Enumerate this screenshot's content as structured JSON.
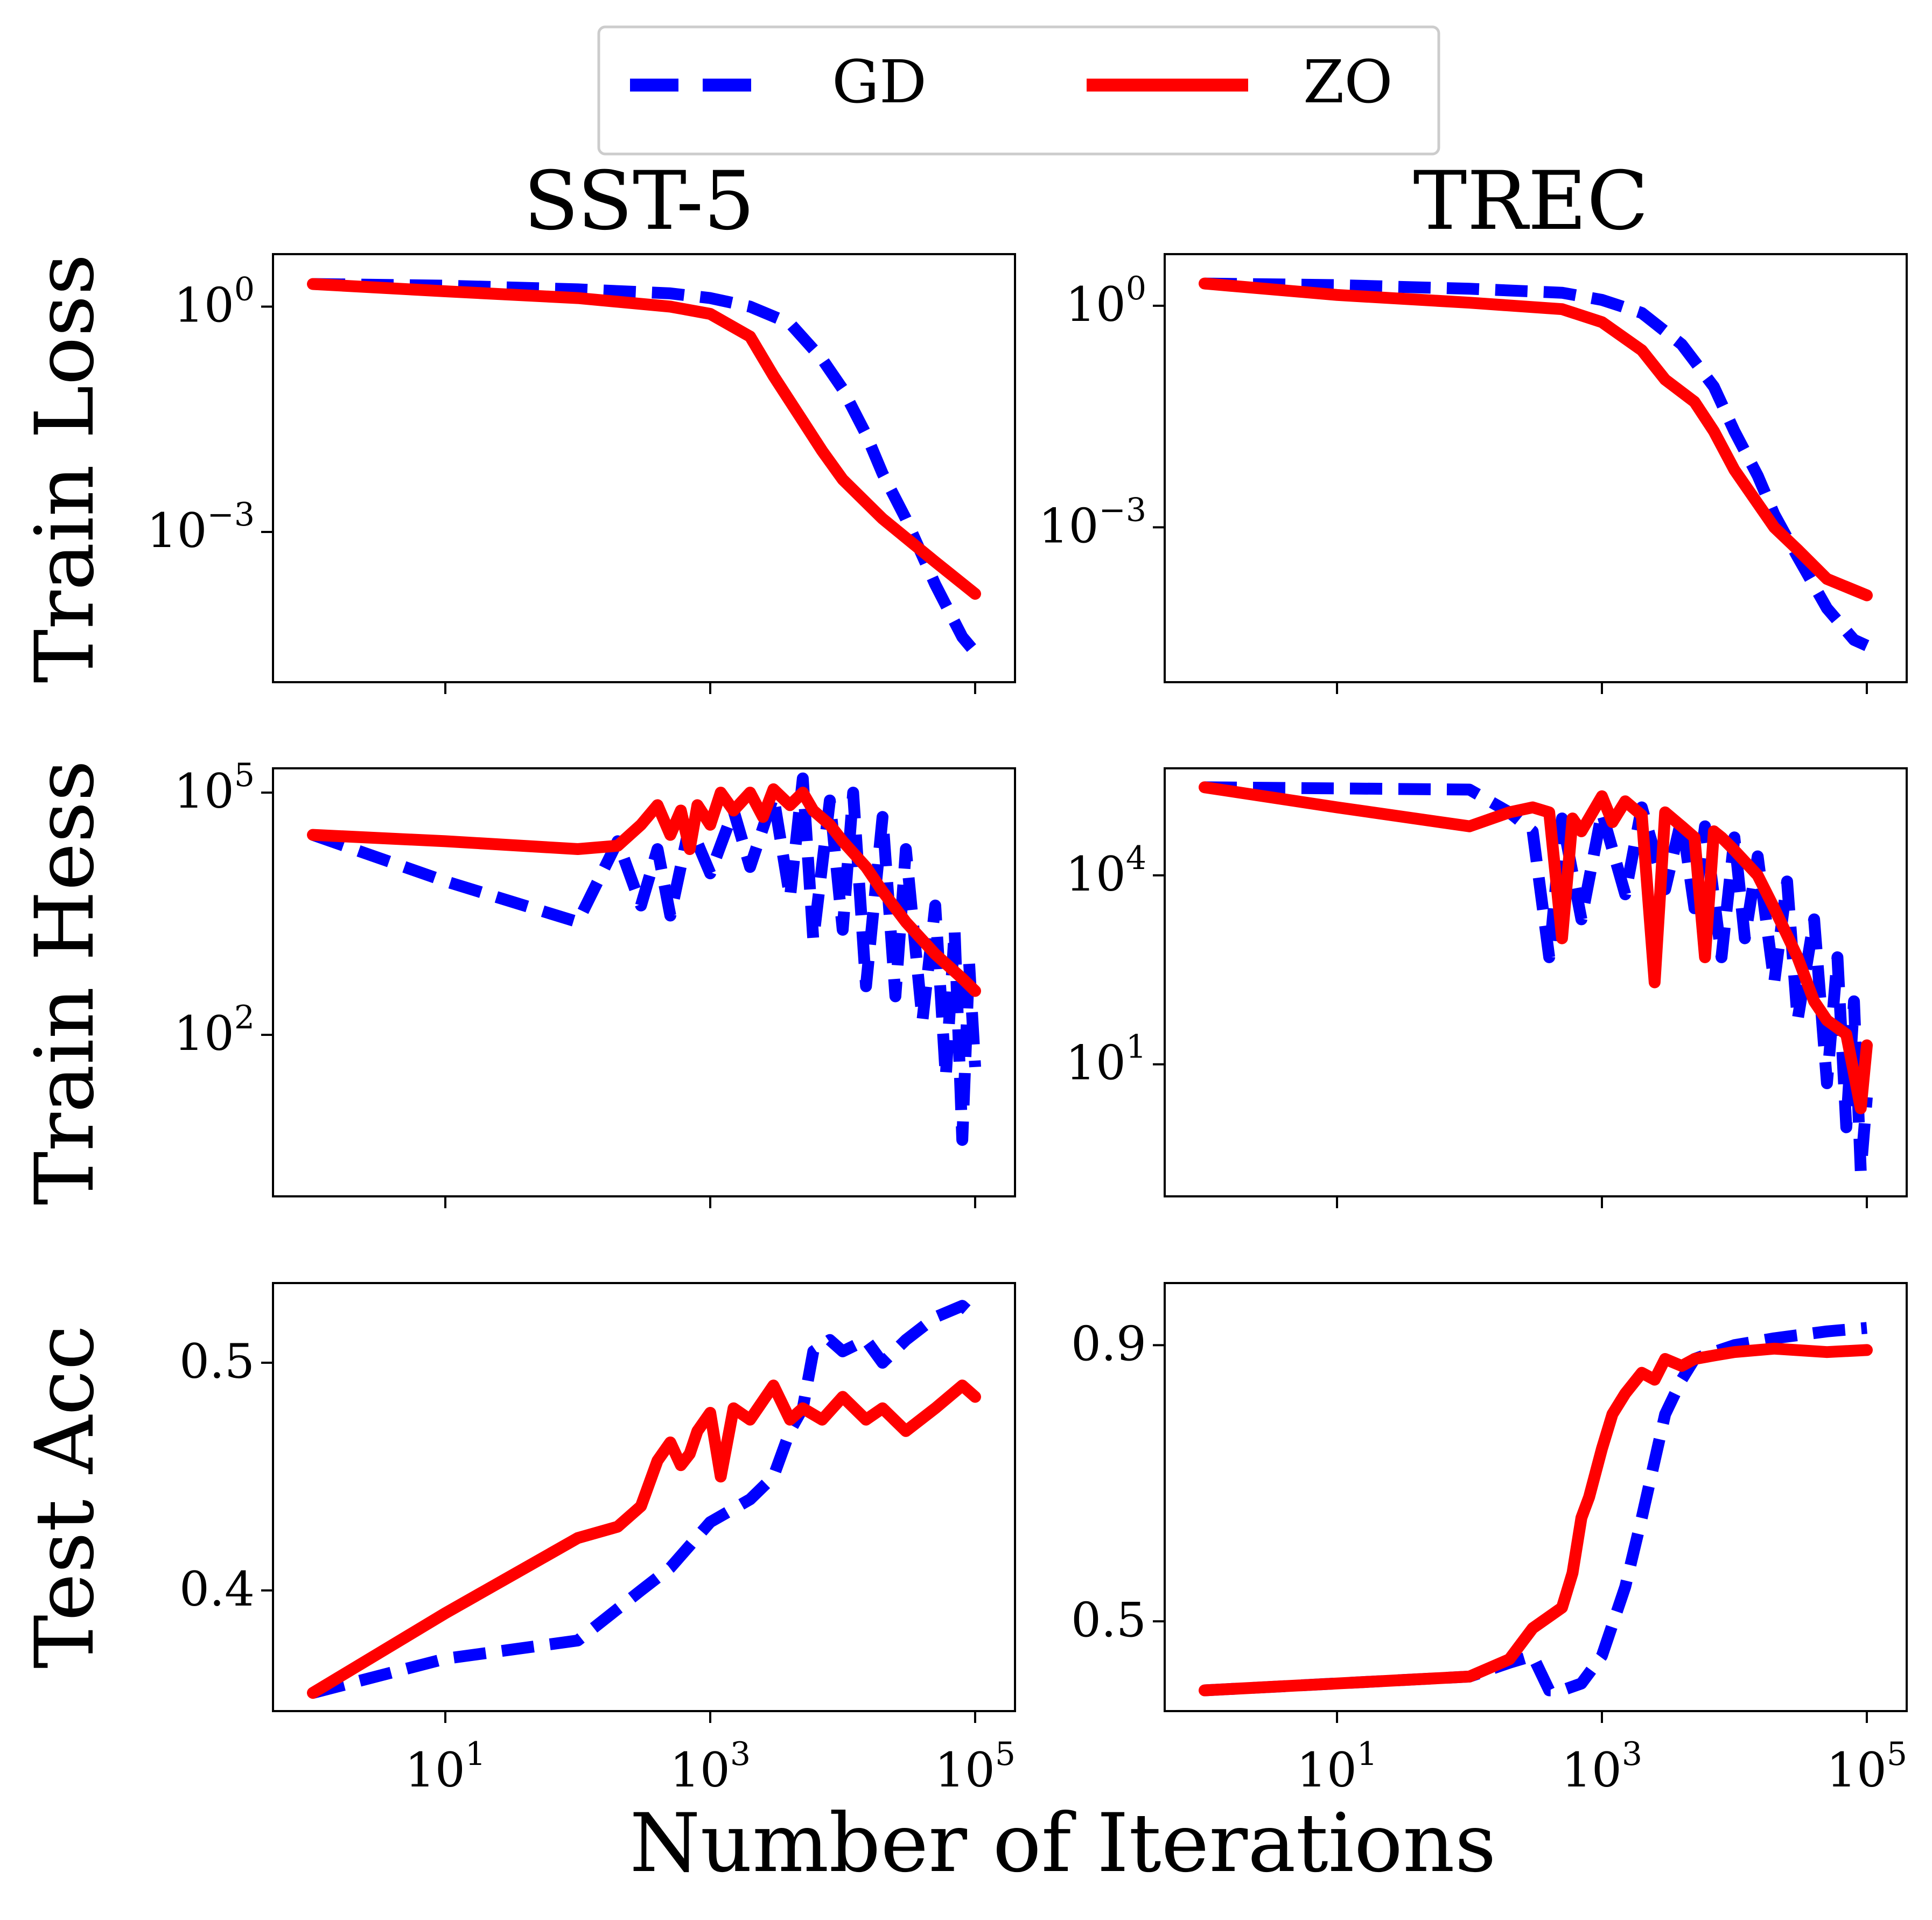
{
  "legend": {
    "entries": [
      {
        "label": "GD",
        "color": "#0000ff",
        "style": "dashed"
      },
      {
        "label": "ZO",
        "color": "#ff0000",
        "style": "solid"
      }
    ],
    "placement": "top-center"
  },
  "column_titles": [
    "SST-5",
    "TREC"
  ],
  "row_labels": [
    "Train Loss",
    "Train Hess",
    "Test Acc"
  ],
  "xlabel": "Number of Iterations",
  "x_tick_labels": [
    "10",
    "10",
    "10"
  ],
  "x_tick_exponents": [
    "1",
    "3",
    "5"
  ],
  "y_tick_exponent_prefix": "−",
  "chart_data": [
    {
      "id": "sst5-train-loss",
      "type": "line",
      "title": "SST-5",
      "ylabel": "Train Loss",
      "xscale": "log",
      "yscale": "log",
      "xlim": [
        0.5,
        200000
      ],
      "ylim": [
        1e-05,
        5
      ],
      "yticks": [
        {
          "value": 1,
          "base": "10",
          "exp": "0"
        },
        {
          "value": 0.001,
          "base": "10",
          "exp": "−3"
        }
      ],
      "series": [
        {
          "name": "GD",
          "x": [
            1,
            10,
            100,
            500,
            1000,
            2000,
            4000,
            7000,
            10000,
            15000,
            20000,
            30000,
            50000,
            80000,
            100000
          ],
          "y": [
            2.0,
            1.9,
            1.7,
            1.5,
            1.3,
            1.0,
            0.6,
            0.2,
            0.08,
            0.02,
            0.006,
            0.0015,
            0.0002,
            4e-05,
            2.5e-05
          ]
        },
        {
          "name": "ZO",
          "x": [
            1,
            10,
            100,
            500,
            1000,
            2000,
            3000,
            5000,
            7000,
            10000,
            20000,
            50000,
            100000
          ],
          "y": [
            2.0,
            1.6,
            1.3,
            1.0,
            0.8,
            0.4,
            0.12,
            0.03,
            0.012,
            0.005,
            0.0015,
            0.0004,
            0.00015
          ]
        }
      ]
    },
    {
      "id": "trec-train-loss",
      "type": "line",
      "title": "TREC",
      "ylabel": "",
      "xscale": "log",
      "yscale": "log",
      "xlim": [
        0.5,
        200000
      ],
      "ylim": [
        8e-06,
        5
      ],
      "yticks": [
        {
          "value": 1,
          "base": "10",
          "exp": "0"
        },
        {
          "value": 0.001,
          "base": "10",
          "exp": "−3"
        }
      ],
      "series": [
        {
          "name": "GD",
          "x": [
            1,
            10,
            100,
            500,
            1000,
            2000,
            4000,
            7000,
            10000,
            15000,
            20000,
            30000,
            50000,
            80000,
            100000
          ],
          "y": [
            2.0,
            1.9,
            1.7,
            1.5,
            1.2,
            0.8,
            0.3,
            0.08,
            0.02,
            0.005,
            0.0015,
            0.0004,
            8e-05,
            3e-05,
            2.5e-05
          ]
        },
        {
          "name": "ZO",
          "x": [
            1,
            10,
            100,
            500,
            1000,
            2000,
            3000,
            5000,
            7000,
            10000,
            20000,
            30000,
            50000,
            100000
          ],
          "y": [
            2.0,
            1.4,
            1.1,
            0.9,
            0.6,
            0.25,
            0.1,
            0.05,
            0.02,
            0.006,
            0.001,
            0.0005,
            0.0002,
            0.00012
          ]
        }
      ]
    },
    {
      "id": "sst5-train-hess",
      "type": "line",
      "ylabel": "Train Hess",
      "xscale": "log",
      "yscale": "log",
      "xlim": [
        0.5,
        200000
      ],
      "ylim": [
        1,
        200000
      ],
      "yticks": [
        {
          "value": 100000,
          "base": "10",
          "exp": "5"
        },
        {
          "value": 100,
          "base": "10",
          "exp": "2"
        }
      ],
      "series": [
        {
          "name": "GD",
          "x": [
            1,
            10,
            100,
            200,
            300,
            400,
            500,
            700,
            1000,
            1500,
            2000,
            3000,
            4000,
            5000,
            6000,
            8000,
            10000,
            12000,
            15000,
            20000,
            25000,
            30000,
            40000,
            50000,
            60000,
            70000,
            80000,
            90000,
            100000
          ],
          "y": [
            30000,
            8000,
            2500,
            25000,
            4000,
            20000,
            3000,
            40000,
            10000,
            60000,
            12000,
            90000,
            5000,
            150000,
            1500,
            80000,
            2000,
            100000,
            400,
            50000,
            300,
            20000,
            150,
            4000,
            30,
            2000,
            5,
            800,
            40
          ]
        },
        {
          "name": "ZO",
          "x": [
            1,
            10,
            100,
            200,
            300,
            400,
            500,
            600,
            700,
            800,
            1000,
            1200,
            1500,
            2000,
            2500,
            3000,
            4000,
            5000,
            6000,
            8000,
            10000,
            15000,
            20000,
            30000,
            50000,
            80000,
            100000
          ],
          "y": [
            30000,
            25000,
            20000,
            22000,
            40000,
            70000,
            30000,
            60000,
            20000,
            70000,
            40000,
            100000,
            60000,
            100000,
            50000,
            110000,
            70000,
            100000,
            60000,
            40000,
            25000,
            12000,
            6000,
            2500,
            1000,
            500,
            350
          ]
        }
      ]
    },
    {
      "id": "trec-train-hess",
      "type": "line",
      "ylabel": "",
      "xscale": "log",
      "yscale": "log",
      "xlim": [
        0.5,
        200000
      ],
      "ylim": [
        0.08,
        500000
      ],
      "yticks": [
        {
          "value": 10000,
          "base": "10",
          "exp": "4"
        },
        {
          "value": 10,
          "base": "10",
          "exp": "1"
        }
      ],
      "series": [
        {
          "name": "GD",
          "x": [
            1,
            10,
            100,
            200,
            300,
            400,
            500,
            700,
            1000,
            1500,
            2000,
            3000,
            4000,
            5000,
            6000,
            8000,
            10000,
            12000,
            15000,
            20000,
            25000,
            30000,
            40000,
            50000,
            60000,
            70000,
            80000,
            90000,
            100000
          ],
          "y": [
            250000,
            240000,
            230000,
            100000,
            50000,
            500,
            80000,
            2000,
            100000,
            5000,
            120000,
            6000,
            80000,
            3000,
            60000,
            500,
            40000,
            1000,
            20000,
            200,
            8000,
            50,
            2000,
            5,
            500,
            1,
            100,
            0.2,
            3
          ]
        },
        {
          "name": "ZO",
          "x": [
            1,
            10,
            100,
            200,
            300,
            400,
            500,
            600,
            700,
            1000,
            1200,
            1500,
            2000,
            2500,
            3000,
            4000,
            5000,
            6000,
            7000,
            8000,
            10000,
            15000,
            20000,
            30000,
            40000,
            50000,
            70000,
            90000,
            100000
          ],
          "y": [
            250000,
            120000,
            60000,
            100000,
            120000,
            100000,
            1000,
            80000,
            50000,
            180000,
            70000,
            150000,
            90000,
            200,
            100000,
            60000,
            40000,
            500,
            50000,
            40000,
            25000,
            10000,
            3000,
            500,
            100,
            50,
            30,
            2,
            20
          ]
        }
      ]
    },
    {
      "id": "sst5-test-acc",
      "type": "line",
      "ylabel": "Test Acc",
      "xscale": "log",
      "yscale": "linear",
      "xlim": [
        0.5,
        200000
      ],
      "ylim": [
        0.347,
        0.535
      ],
      "yticks": [
        {
          "value": 0.5,
          "base": "0.5",
          "exp": ""
        },
        {
          "value": 0.4,
          "base": "0.4",
          "exp": ""
        }
      ],
      "series": [
        {
          "name": "GD",
          "x": [
            1,
            10,
            100,
            300,
            500,
            1000,
            2000,
            3000,
            4000,
            5000,
            6000,
            8000,
            10000,
            15000,
            20000,
            30000,
            50000,
            80000,
            100000
          ],
          "y": [
            0.355,
            0.37,
            0.378,
            0.4,
            0.41,
            0.43,
            0.44,
            0.45,
            0.47,
            0.48,
            0.505,
            0.51,
            0.505,
            0.51,
            0.5,
            0.51,
            0.52,
            0.525,
            0.52
          ]
        },
        {
          "name": "ZO",
          "x": [
            1,
            10,
            100,
            200,
            300,
            400,
            500,
            600,
            700,
            800,
            1000,
            1200,
            1500,
            2000,
            3000,
            4000,
            5000,
            7000,
            10000,
            15000,
            20000,
            30000,
            50000,
            80000,
            100000
          ],
          "y": [
            0.355,
            0.39,
            0.423,
            0.428,
            0.437,
            0.457,
            0.465,
            0.455,
            0.46,
            0.47,
            0.478,
            0.45,
            0.48,
            0.475,
            0.49,
            0.475,
            0.48,
            0.475,
            0.485,
            0.475,
            0.48,
            0.47,
            0.48,
            0.49,
            0.485
          ]
        }
      ]
    },
    {
      "id": "trec-test-acc",
      "type": "line",
      "ylabel": "",
      "xscale": "log",
      "yscale": "linear",
      "xlim": [
        0.5,
        200000
      ],
      "ylim": [
        0.37,
        0.99
      ],
      "yticks": [
        {
          "value": 0.9,
          "base": "0.9",
          "exp": ""
        },
        {
          "value": 0.5,
          "base": "0.5",
          "exp": ""
        }
      ],
      "series": [
        {
          "name": "GD",
          "x": [
            1,
            10,
            100,
            200,
            300,
            400,
            500,
            700,
            1000,
            1500,
            2000,
            3000,
            4000,
            5000,
            7000,
            10000,
            20000,
            50000,
            100000
          ],
          "y": [
            0.4,
            0.41,
            0.42,
            0.44,
            0.45,
            0.4,
            0.4,
            0.41,
            0.45,
            0.55,
            0.65,
            0.8,
            0.85,
            0.88,
            0.89,
            0.9,
            0.91,
            0.92,
            0.925
          ]
        },
        {
          "name": "ZO",
          "x": [
            1,
            10,
            100,
            200,
            300,
            500,
            600,
            700,
            800,
            1000,
            1200,
            1500,
            2000,
            2500,
            3000,
            4000,
            5000,
            7000,
            10000,
            20000,
            50000,
            100000
          ],
          "y": [
            0.4,
            0.41,
            0.42,
            0.445,
            0.49,
            0.52,
            0.57,
            0.65,
            0.68,
            0.75,
            0.8,
            0.83,
            0.86,
            0.85,
            0.88,
            0.87,
            0.88,
            0.885,
            0.89,
            0.895,
            0.89,
            0.893
          ]
        }
      ]
    }
  ]
}
